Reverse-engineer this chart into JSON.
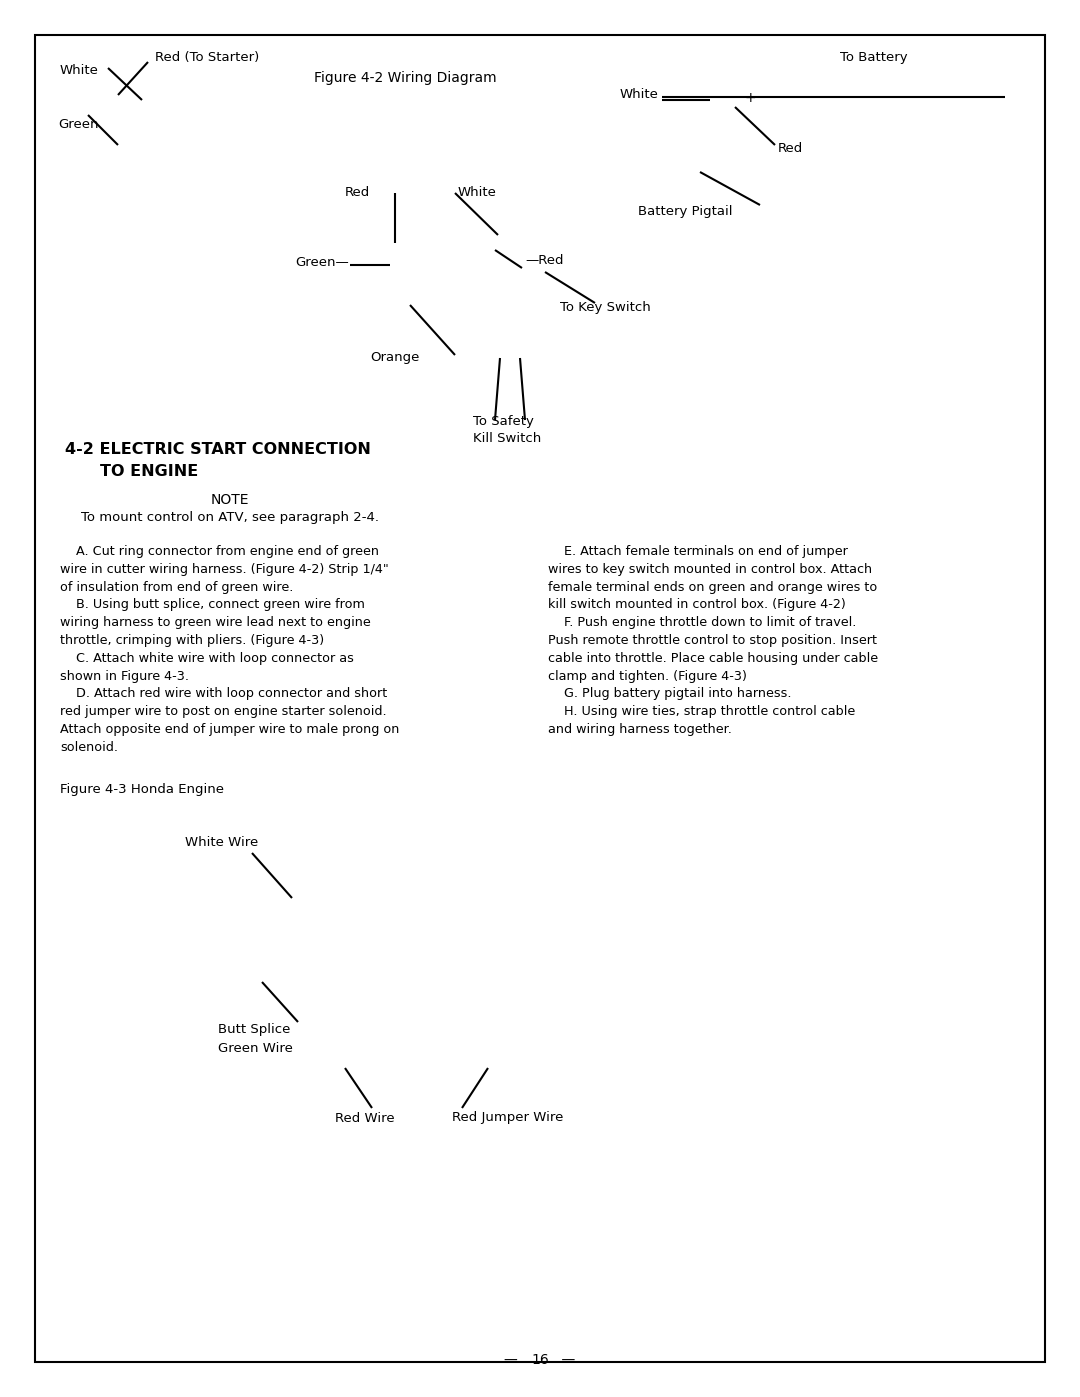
{
  "page_width": 10.8,
  "page_height": 13.97,
  "bg_color": "#ffffff",
  "border_color": "#000000",
  "text_color": "#000000",
  "figure_title": "Figure 4-2 Wiring Diagram",
  "section_title_line1": "4-2 ELECTRIC START CONNECTION",
  "section_title_line2": "TO ENGINE",
  "note_title": "NOTE",
  "note_text": "To mount control on ATV, see paragraph 2-4.",
  "fig43_label": "Figure 4-3 Honda Engine",
  "page_number": "16"
}
